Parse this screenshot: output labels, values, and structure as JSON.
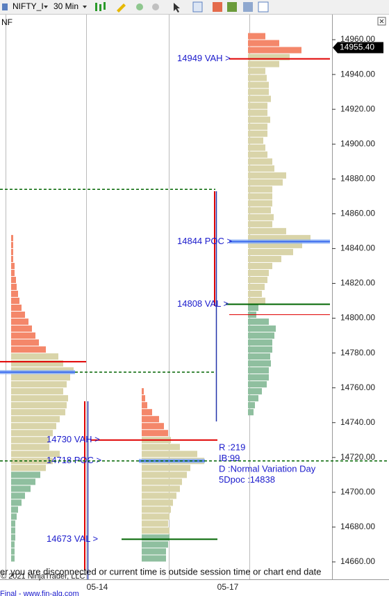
{
  "toolbar": {
    "instrument": "NIFTY_I",
    "interval": "30 Min"
  },
  "chart_data": {
    "type": "market_profile",
    "chart_label": "NF",
    "ylim": [
      14650,
      14974
    ],
    "yticks": [
      {
        "value": 14660,
        "label": "14660.00"
      },
      {
        "value": 14680,
        "label": "14680.00"
      },
      {
        "value": 14700,
        "label": "14700.00"
      },
      {
        "value": 14720,
        "label": "14720.00"
      },
      {
        "value": 14740,
        "label": "14740.00"
      },
      {
        "value": 14760,
        "label": "14760.00"
      },
      {
        "value": 14780,
        "label": "14780.00"
      },
      {
        "value": 14800,
        "label": "14800.00"
      },
      {
        "value": 14820,
        "label": "14820.00"
      },
      {
        "value": 14840,
        "label": "14840.00"
      },
      {
        "value": 14860,
        "label": "14860.00"
      },
      {
        "value": 14880,
        "label": "14880.00"
      },
      {
        "value": 14900,
        "label": "14900.00"
      },
      {
        "value": 14920,
        "label": "14920.00"
      },
      {
        "value": 14940,
        "label": "14940.00"
      },
      {
        "value": 14960,
        "label": "14960.00"
      }
    ],
    "categories": [
      "05-14",
      "05-17"
    ],
    "colors": {
      "above": "#f4876a",
      "inside": "#d9d4a9",
      "below": "#8fbf9f"
    },
    "profiles": [
      {
        "vah": 14776,
        "val": 14712,
        "prices": [
          14844,
          14840,
          14836,
          14832,
          14828,
          14824,
          14820,
          14816,
          14812,
          14808,
          14804,
          14800,
          14796,
          14792,
          14788,
          14784,
          14780,
          14776,
          14772,
          14768,
          14764,
          14760,
          14756,
          14752,
          14748,
          14744,
          14740,
          14736,
          14732,
          14728,
          14724,
          14720,
          14716,
          14712,
          14708,
          14704,
          14700,
          14696,
          14692,
          14688,
          14684,
          14680,
          14676,
          14672,
          14668,
          14664,
          14660
        ],
        "values": [
          3,
          3,
          3,
          3,
          5,
          5,
          7,
          8,
          10,
          12,
          15,
          20,
          25,
          30,
          35,
          40,
          50,
          68,
          75,
          90,
          85,
          80,
          75,
          82,
          80,
          78,
          70,
          65,
          60,
          55,
          55,
          70,
          60,
          50,
          42,
          35,
          28,
          20,
          15,
          10,
          8,
          6,
          6,
          6,
          5,
          5,
          5
        ]
      },
      {
        "vah": 14730,
        "val": 14673,
        "prices": [
          14756,
          14752,
          14748,
          14744,
          14740,
          14736,
          14732,
          14728,
          14724,
          14720,
          14716,
          14712,
          14708,
          14704,
          14700,
          14696,
          14692,
          14688,
          14684,
          14680,
          14676,
          14672,
          14668,
          14664,
          14660
        ],
        "values": [
          3,
          5,
          8,
          15,
          25,
          32,
          38,
          42,
          55,
          80,
          90,
          70,
          65,
          58,
          55,
          50,
          45,
          42,
          40,
          38,
          40,
          40,
          38,
          35,
          35
        ]
      },
      {
        "vah": 14949,
        "val": 14808,
        "prices": [
          14960,
          14956,
          14952,
          14948,
          14944,
          14940,
          14936,
          14932,
          14928,
          14924,
          14920,
          14916,
          14912,
          14908,
          14904,
          14900,
          14896,
          14892,
          14888,
          14884,
          14880,
          14876,
          14872,
          14868,
          14864,
          14860,
          14856,
          14852,
          14848,
          14844,
          14840,
          14836,
          14832,
          14828,
          14824,
          14820,
          14816,
          14812,
          14808,
          14804,
          14800,
          14796,
          14792,
          14788,
          14784,
          14780,
          14776,
          14772,
          14768,
          14764,
          14760,
          14756,
          14752,
          14748,
          14744
        ],
        "values": [
          25,
          45,
          77,
          60,
          45,
          25,
          27,
          30,
          30,
          33,
          28,
          28,
          32,
          28,
          28,
          22,
          25,
          28,
          35,
          38,
          55,
          50,
          35,
          35,
          35,
          33,
          37,
          35,
          55,
          90,
          78,
          65,
          48,
          35,
          30,
          28,
          24,
          20,
          25,
          15,
          12,
          30,
          40,
          38,
          35,
          35,
          32,
          33,
          30,
          30,
          27,
          20,
          15,
          10,
          8
        ]
      }
    ],
    "levels": [
      {
        "value": 14949,
        "label": "14949 VAH >",
        "color": "#e00000",
        "style": "solid"
      },
      {
        "value": 14844,
        "label": "14844 POC >",
        "color": "#3d6cf0",
        "style": "thick"
      },
      {
        "value": 14808,
        "label": "14808 VAL >",
        "color": "#006400",
        "style": "solid"
      },
      {
        "value": 14802,
        "color": "#e00000",
        "style": "thin"
      },
      {
        "value": 14730,
        "label": "14730 VAH >",
        "color": "#e00000",
        "style": "solid"
      },
      {
        "value": 14718,
        "label": "14718 POC >",
        "color": "#3d6cf0",
        "style": "thick"
      },
      {
        "value": 14673,
        "label": "14673 VAL >",
        "color": "#006400",
        "style": "solid"
      },
      {
        "value": 14775,
        "color": "#e00000",
        "style": "solid"
      },
      {
        "value": 14769,
        "color": "#3d6cf0",
        "style": "thick"
      },
      {
        "value": 14874,
        "color": "#006400",
        "style": "dashed"
      },
      {
        "value": 14769,
        "color": "#006400",
        "style": "dashed"
      },
      {
        "value": 14718,
        "color": "#006400",
        "style": "dashed"
      }
    ],
    "stats": [
      "R :219",
      "IB:99",
      "D :Normal Variation Day",
      "5Dpoc :14838"
    ],
    "last_price": {
      "value": 14955.4,
      "label": "14955.40"
    }
  },
  "footer": {
    "copyright": "© 2021 NinjaTrader, LLC",
    "message": "er you are disconnected or current time is outside session time or chart end date",
    "link": "Final - www.fin-alg.com"
  }
}
